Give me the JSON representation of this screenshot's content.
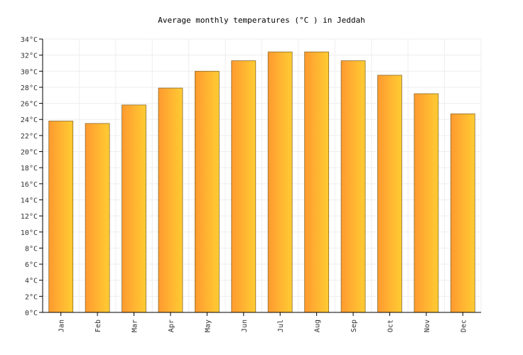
{
  "chart_data": {
    "type": "bar",
    "title": "Average monthly temperatures (°C ) in Jeddah",
    "categories": [
      "Jan",
      "Feb",
      "Mar",
      "Apr",
      "May",
      "Jun",
      "Jul",
      "Aug",
      "Sep",
      "Oct",
      "Nov",
      "Dec"
    ],
    "values": [
      23.8,
      23.5,
      25.8,
      27.9,
      30.0,
      31.3,
      32.4,
      32.4,
      31.3,
      29.5,
      27.2,
      24.7
    ],
    "ylim": [
      0,
      34
    ],
    "yticks": [
      "0°C",
      "2°C",
      "4°C",
      "6°C",
      "8°C",
      "10°C",
      "12°C",
      "14°C",
      "16°C",
      "18°C",
      "20°C",
      "22°C",
      "24°C",
      "26°C",
      "28°C",
      "30°C",
      "32°C",
      "34°C"
    ],
    "grid": true,
    "colors": {
      "bar_left": "#ff9a30",
      "bar_right": "#ffcc33",
      "bar_stroke": "#8a6a2a",
      "grid": "#eeeeee",
      "axis": "#000000"
    }
  }
}
